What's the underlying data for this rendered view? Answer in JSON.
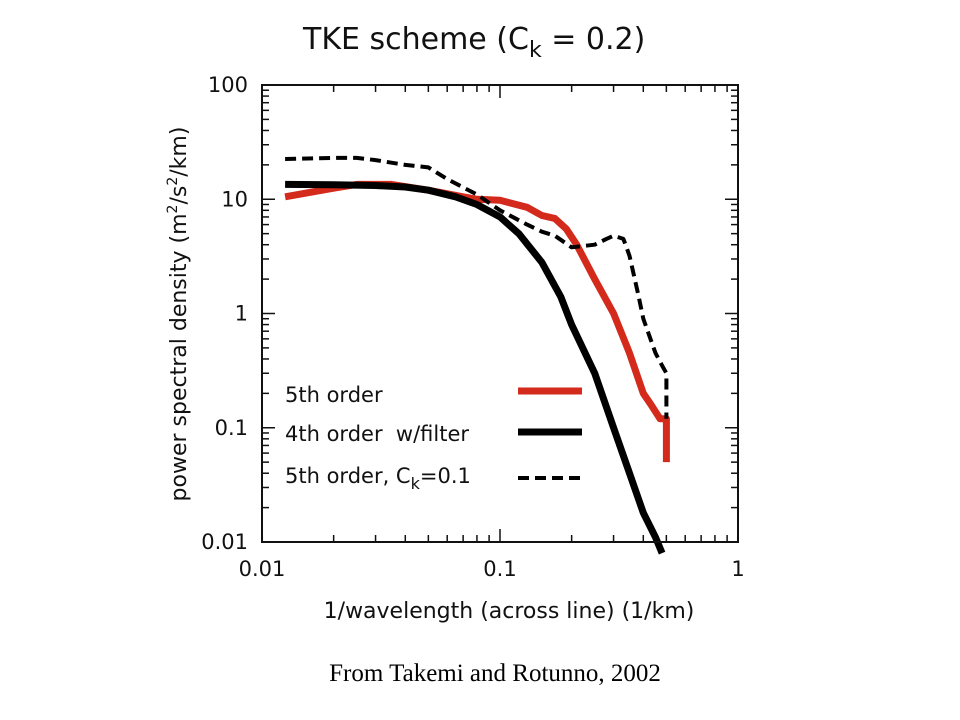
{
  "chart_data": {
    "type": "line",
    "title": "TKE scheme  (C",
    "title_subscript": "k",
    "title_suffix": " = 0.2)",
    "xlabel": "1/wavelength (across line) (1/km)",
    "ylabel_parts": [
      "power spectral density (m",
      "2",
      "/s",
      "2",
      "/km)"
    ],
    "x_scale": "log",
    "y_scale": "log",
    "xlim": [
      0.01,
      1
    ],
    "ylim": [
      0.01,
      100
    ],
    "x_ticks": [
      "0.01",
      "0.1",
      "1"
    ],
    "y_ticks": [
      "0.01",
      "0.1",
      "1",
      "10",
      "100"
    ],
    "legend_location": "lower-left",
    "series": [
      {
        "name": "5th order",
        "color": "#d42a1c",
        "dash": "solid",
        "x": [
          0.0125,
          0.02,
          0.025,
          0.035,
          0.05,
          0.07,
          0.08,
          0.1,
          0.11,
          0.13,
          0.15,
          0.17,
          0.19,
          0.21,
          0.25,
          0.3,
          0.35,
          0.4,
          0.43,
          0.47,
          0.5,
          0.5
        ],
        "y": [
          10.5,
          12.5,
          13.5,
          13.5,
          12,
          10.5,
          10,
          9.8,
          9.3,
          8.5,
          7.2,
          6.8,
          5.5,
          4,
          2,
          1,
          0.45,
          0.2,
          0.16,
          0.12,
          0.12,
          0.05
        ]
      },
      {
        "name": "4th order  w/filter",
        "color": "#000000",
        "dash": "solid",
        "x": [
          0.0125,
          0.02,
          0.03,
          0.04,
          0.05,
          0.065,
          0.08,
          0.1,
          0.12,
          0.15,
          0.18,
          0.2,
          0.25,
          0.3,
          0.35,
          0.4,
          0.45,
          0.48
        ],
        "y": [
          13.5,
          13.4,
          13.2,
          12.8,
          12,
          10.5,
          9,
          7,
          5,
          2.8,
          1.4,
          0.8,
          0.3,
          0.1,
          0.04,
          0.018,
          0.011,
          0.008
        ]
      },
      {
        "name_parts": [
          "5th order, C",
          "k",
          "=0.1"
        ],
        "color": "#000000",
        "dash": "dashed",
        "x": [
          0.0125,
          0.02,
          0.025,
          0.03,
          0.04,
          0.05,
          0.06,
          0.08,
          0.1,
          0.13,
          0.15,
          0.17,
          0.2,
          0.25,
          0.28,
          0.3,
          0.33,
          0.35,
          0.38,
          0.4,
          0.45,
          0.48,
          0.5,
          0.5
        ],
        "y": [
          22.5,
          23,
          23,
          22,
          20,
          19,
          15,
          11,
          8,
          6,
          5.2,
          4.8,
          3.8,
          4,
          4.5,
          4.8,
          4.5,
          3.2,
          1.5,
          0.9,
          0.45,
          0.35,
          0.3,
          0.12
        ]
      }
    ]
  },
  "caption": "From Takemi and Rotunno, 2002"
}
